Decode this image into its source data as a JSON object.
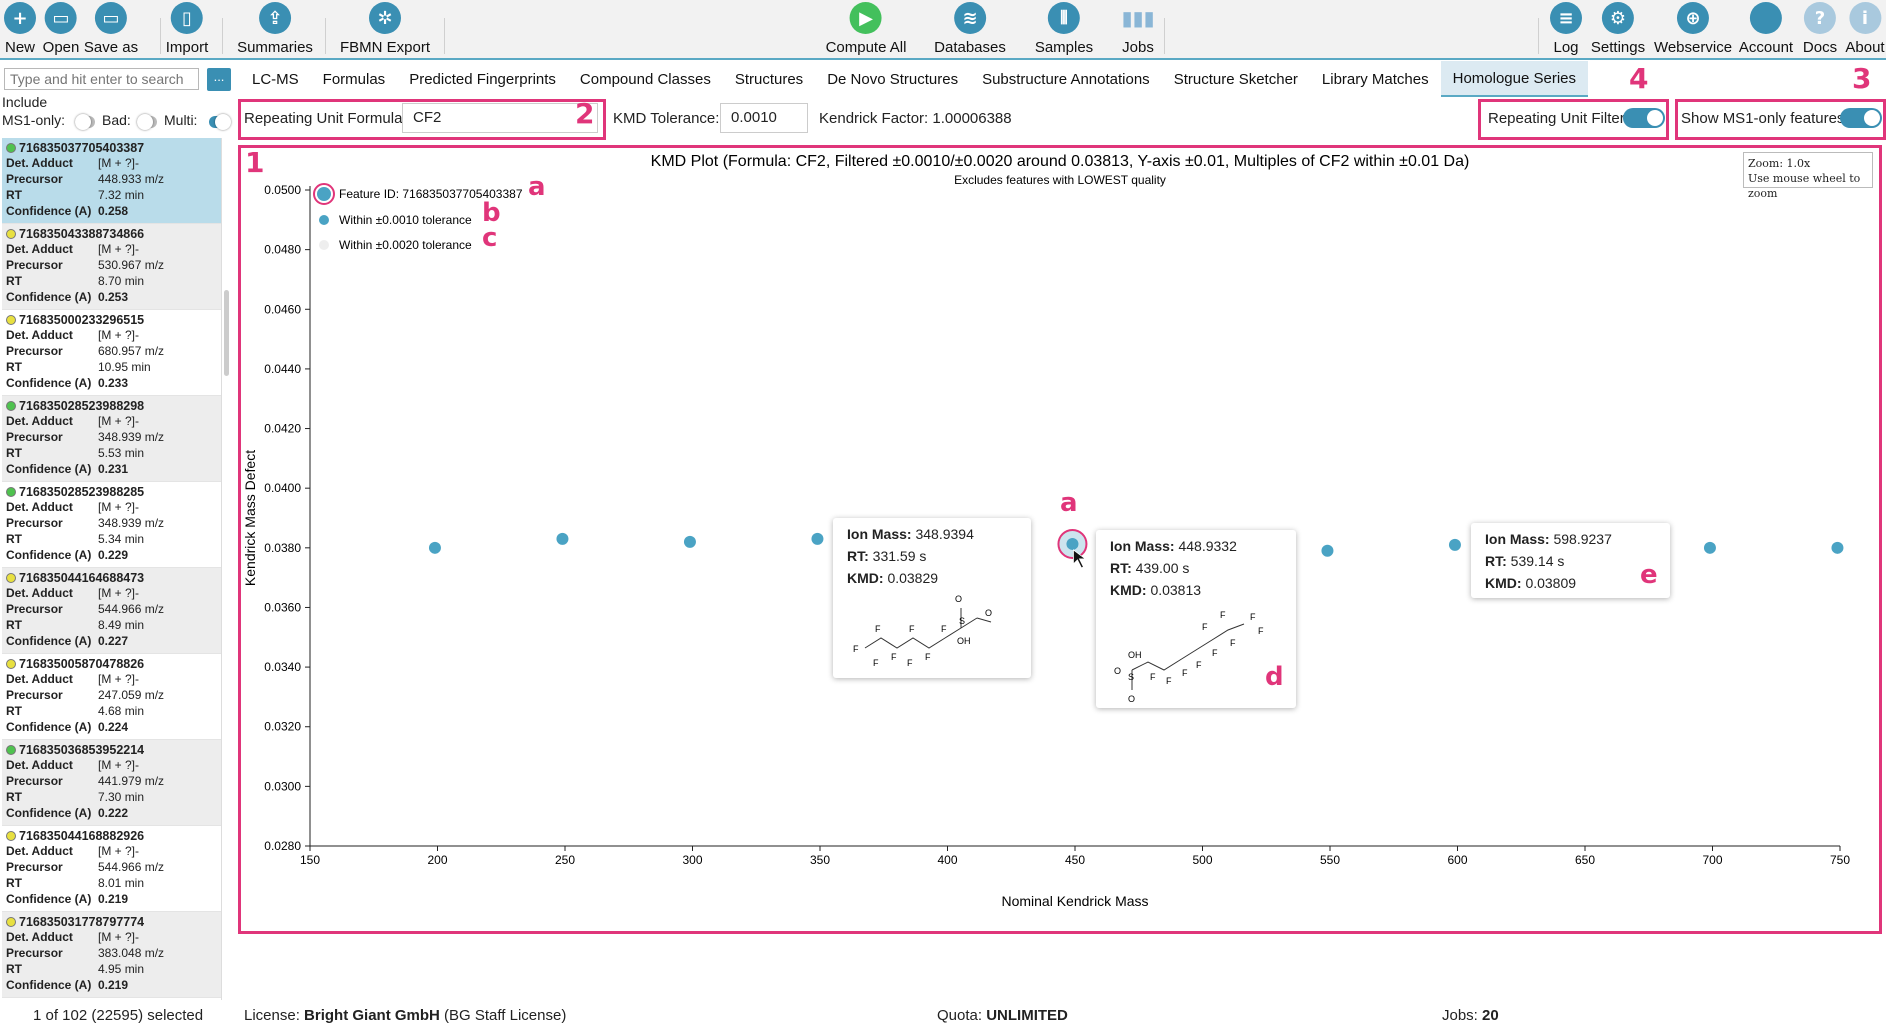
{
  "toolbar": {
    "left": [
      {
        "label": "New",
        "icon": "new-file-icon",
        "glyph": "+"
      },
      {
        "label": "Open",
        "icon": "open-folder-icon",
        "glyph": "▭"
      },
      {
        "label": "Save as",
        "icon": "save-icon",
        "glyph": "▭"
      },
      {
        "label": "Import",
        "icon": "import-icon",
        "glyph": "▯"
      },
      {
        "label": "Summaries",
        "icon": "summaries-icon",
        "glyph": "⇪"
      },
      {
        "label": "FBMN Export",
        "icon": "network-icon",
        "glyph": "✲"
      }
    ],
    "center": [
      {
        "label": "Compute All",
        "icon": "play-icon",
        "glyph": "▶"
      },
      {
        "label": "Databases",
        "icon": "database-icon",
        "glyph": "≋"
      },
      {
        "label": "Samples",
        "icon": "samples-icon",
        "glyph": "⦀"
      },
      {
        "label": "Jobs",
        "icon": "jobs-icon",
        "glyph": "▮▮▮"
      }
    ],
    "right": [
      {
        "label": "Log",
        "icon": "log-icon",
        "glyph": "≡"
      },
      {
        "label": "Settings",
        "icon": "gear-icon",
        "glyph": "⚙"
      },
      {
        "label": "Webservice",
        "icon": "globe-icon",
        "glyph": "⊕"
      },
      {
        "label": "Account",
        "icon": "account-icon",
        "glyph": ""
      },
      {
        "label": "Docs",
        "icon": "help-icon",
        "glyph": "?"
      },
      {
        "label": "About",
        "icon": "info-icon",
        "glyph": "i"
      }
    ]
  },
  "tabs": [
    "LC-MS",
    "Formulas",
    "Predicted Fingerprints",
    "Compound Classes",
    "Structures",
    "De Novo Structures",
    "Substructure Annotations",
    "Structure Sketcher",
    "Library Matches",
    "Homologue Series"
  ],
  "active_tab": "Homologue Series",
  "search": {
    "placeholder": "Type and hit enter to search",
    "button": "..."
  },
  "filters": {
    "include": "Include",
    "ms1_only": "MS1-only:",
    "bad": "Bad:",
    "multi": "Multi:"
  },
  "features": [
    {
      "id": "716835037705403387",
      "adduct": "[M + ?]-",
      "precursor": "448.933 m/z",
      "rt": "7.32 min",
      "confidence": "0.258",
      "quality": "good",
      "selected": true
    },
    {
      "id": "716835043388734866",
      "adduct": "[M + ?]-",
      "precursor": "530.967 m/z",
      "rt": "8.70 min",
      "confidence": "0.253",
      "quality": "medium"
    },
    {
      "id": "716835000233296515",
      "adduct": "[M + ?]-",
      "precursor": "680.957 m/z",
      "rt": "10.95 min",
      "confidence": "0.233",
      "quality": "medium"
    },
    {
      "id": "716835028523988298",
      "adduct": "[M + ?]-",
      "precursor": "348.939 m/z",
      "rt": "5.53 min",
      "confidence": "0.231",
      "quality": "good"
    },
    {
      "id": "716835028523988285",
      "adduct": "[M + ?]-",
      "precursor": "348.939 m/z",
      "rt": "5.34 min",
      "confidence": "0.229",
      "quality": "good"
    },
    {
      "id": "716835044164688473",
      "adduct": "[M + ?]-",
      "precursor": "544.966 m/z",
      "rt": "8.49 min",
      "confidence": "0.227",
      "quality": "medium"
    },
    {
      "id": "716835005870478826",
      "adduct": "[M + ?]-",
      "precursor": "247.059 m/z",
      "rt": "4.68 min",
      "confidence": "0.224",
      "quality": "medium"
    },
    {
      "id": "716835036853952214",
      "adduct": "[M + ?]-",
      "precursor": "441.979 m/z",
      "rt": "7.30 min",
      "confidence": "0.222",
      "quality": "good"
    },
    {
      "id": "716835044168882926",
      "adduct": "[M + ?]-",
      "precursor": "544.966 m/z",
      "rt": "8.01 min",
      "confidence": "0.219",
      "quality": "medium"
    },
    {
      "id": "716835031778797774",
      "adduct": "[M + ?]-",
      "precursor": "383.048 m/z",
      "rt": "4.95 min",
      "confidence": "0.219",
      "quality": "medium"
    }
  ],
  "feature_fields": {
    "adduct": "Det. Adduct",
    "precursor": "Precursor",
    "rt": "RT",
    "confidence": "Confidence (A)"
  },
  "options": {
    "repeat_label": "Repeating Unit Formula:",
    "repeat_value": "CF2",
    "tol_label": "KMD Tolerance:",
    "tol_value": "0.0010",
    "kendrick_factor": "Kendrick Factor: 1.00006388",
    "filter_label": "Repeating Unit Filter:",
    "ms1_label": "Show MS1-only features:"
  },
  "annotations": {
    "n1": "1",
    "n2": "2",
    "n3": "3",
    "n4": "4",
    "a": "a",
    "b": "b",
    "c": "c",
    "d": "d",
    "e": "e"
  },
  "zoom": {
    "line1": "Zoom: 1.0x",
    "line2": "Use mouse wheel to zoom"
  },
  "tooltips": [
    {
      "mass": "348.9394",
      "rt": "331.59 s",
      "kmd": "0.03829"
    },
    {
      "mass": "448.9332",
      "rt": "439.00 s",
      "kmd": "0.03813"
    },
    {
      "mass": "598.9237",
      "rt": "539.14 s",
      "kmd": "0.03809"
    }
  ],
  "tooltip_labels": {
    "mass": "Ion Mass:",
    "rt": "RT:",
    "kmd": "KMD:"
  },
  "chart_data": {
    "type": "scatter",
    "title": "KMD Plot (Formula: CF2, Filtered ±0.0010/±0.0020 around 0.03813, Y-axis ±0.01, Multiples of CF2 within ±0.01 Da)",
    "subtitle": "Excludes features with LOWEST quality",
    "xlabel": "Nominal Kendrick Mass",
    "ylabel": "Kendrick Mass Defect",
    "xlim": [
      150,
      750
    ],
    "ylim": [
      0.028,
      0.05
    ],
    "xticks": [
      150,
      200,
      250,
      300,
      350,
      400,
      450,
      500,
      550,
      600,
      650,
      700,
      750
    ],
    "yticks": [
      "0.0280",
      "0.0300",
      "0.0320",
      "0.0340",
      "0.0360",
      "0.0380",
      "0.0400",
      "0.0420",
      "0.0440",
      "0.0460",
      "0.0480",
      "0.0500"
    ],
    "legend": [
      {
        "name": "Feature ID: 716835037705403387",
        "color": "#4aa3c4"
      },
      {
        "name": "Within ±0.0010 tolerance",
        "color": "#4aa3c4"
      },
      {
        "name": "Within ±0.0020 tolerance",
        "color": "#eeeeee"
      }
    ],
    "legend_position": "top-left",
    "grid": false,
    "series": [
      {
        "name": "Within ±0.0010 tolerance",
        "x": [
          199,
          249,
          299,
          349,
          549,
          599,
          699,
          749
        ],
        "y": [
          0.038,
          0.0383,
          0.0382,
          0.0383,
          0.0379,
          0.0381,
          0.038,
          0.038
        ]
      },
      {
        "name": "Feature ID: 716835037705403387",
        "x": [
          449
        ],
        "y": [
          0.03813
        ]
      }
    ]
  },
  "status": {
    "selected": "1 of 102 (22595) selected",
    "license_label": "License:",
    "license_name": "Bright Giant GmbH",
    "license_rest": "(BG Staff License)",
    "quota_label": "Quota:",
    "quota_value": "UNLIMITED",
    "jobs_label": "Jobs:",
    "jobs_value": "20"
  }
}
